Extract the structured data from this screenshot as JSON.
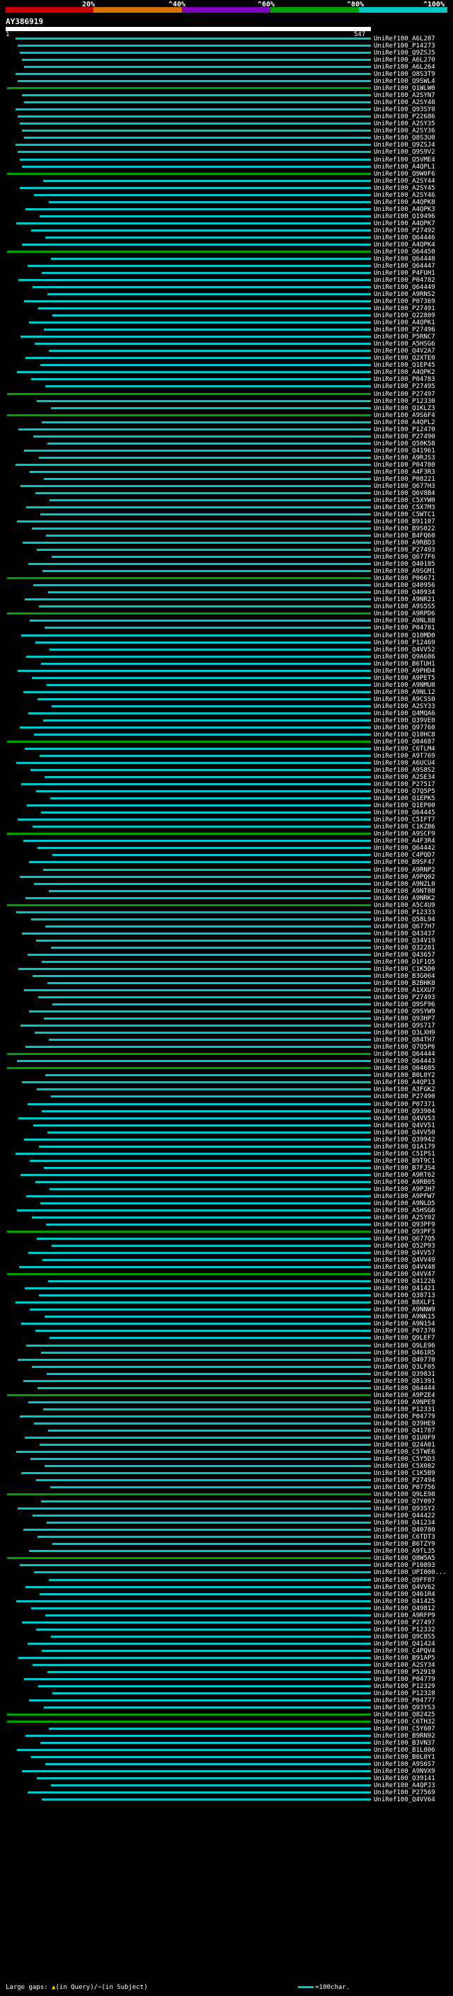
{
  "query": {
    "name": "AY386919",
    "start": "1",
    "end": "547"
  },
  "legend": {
    "labels": [
      "20%",
      "^40%",
      "^60%",
      "^80%",
      "^100%"
    ],
    "colors": [
      "#cc0000",
      "#d87000",
      "#8000c0",
      "#00a000",
      "#00c8c8"
    ]
  },
  "footer": {
    "large_gaps": "Large gaps:",
    "in_query": "(in Query)/",
    "in_subject": "(in Subject)",
    "scale": "=100char."
  },
  "hits": [
    "UniRef100_A6L287",
    "UniRef100_P14273",
    "UniRef100_Q9ZSJ5",
    "UniRef100_A6L270",
    "UniRef100_A6L264",
    "UniRef100_Q8S3T9",
    "UniRef100_Q9SWL4",
    "UniRef100_Q1WLW0",
    "UniRef100_A2SYN7",
    "UniRef100_A2SY48",
    "UniRef100_Q93SY8",
    "UniRef100_P22686",
    "UniRef100_A2SY35",
    "UniRef100_A2SY36",
    "UniRef100_Q8S3U0",
    "UniRef100_Q9ZSJ4",
    "UniRef100_Q9S9V2",
    "UniRef100_Q5VME4",
    "UniRef100_A4QPL1",
    "UniRef100_Q9W0F6",
    "UniRef100_A2SY44",
    "UniRef100_A2SY45",
    "UniRef100_A2SY46",
    "UniRef100_A4QPK8",
    "UniRef100_A4QPK3",
    "UniRef100_Q19496",
    "UniRef100_A4QPK7",
    "UniRef100_P27492",
    "UniRef100_Q64446",
    "UniRef100_A4QPK4",
    "UniRef100_Q64450",
    "UniRef100_Q64448",
    "UniRef100_Q64447",
    "UniRef100_P4FUH1",
    "UniRef100_P04782",
    "UniRef100_Q64449",
    "UniRef100_A9RNS2",
    "UniRef100_P07369",
    "UniRef100_P27491",
    "UniRef100_Q22809",
    "UniRef100_A4QPK1",
    "UniRef100_P27496",
    "UniRef100_P5RNC7",
    "UniRef100_A5HSG6",
    "UniRef100_Q4V2A7",
    "UniRef100_Q2XTE0",
    "UniRef100_Q1EP45",
    "UniRef100_A4QPK2",
    "UniRef100_P04783",
    "UniRef100_P27495",
    "UniRef100_P27497",
    "UniRef100_P12330",
    "UniRef100_Q1KLZ3",
    "UniRef100_A9S6F4",
    "UniRef100_A4QPL2",
    "UniRef100_P12470",
    "UniRef100_P27490",
    "UniRef100_Q50K58",
    "UniRef100_Q41961",
    "UniRef100_A9RJS3",
    "UniRef100_P04780",
    "UniRef100_A4F3R3",
    "UniRef100_P08221",
    "UniRef100_Q677H3",
    "UniRef100_Q6V8B4",
    "UniRef100_C5XYW0",
    "UniRef100_C5X7M3",
    "UniRef100_C5WTC1",
    "UniRef100_B91107",
    "UniRef100_B9S022",
    "UniRef100_B4FQ60",
    "UniRef100_A9RBD3",
    "UniRef100_P27493",
    "UniRef100_Q677F6",
    "UniRef100_Q40185",
    "UniRef100_A9SGM1",
    "UniRef100_P06671",
    "UniRef100_Q40956",
    "UniRef100_Q40934",
    "UniRef100_A9NR21",
    "UniRef100_A9S5S5",
    "UniRef100_A9RPD6",
    "UniRef100_A9NL88",
    "UniRef100_P04781",
    "UniRef100_Q10MD0",
    "UniRef100_P12469",
    "UniRef100_Q4VV52",
    "UniRef100_Q9A686",
    "UniRef100_B6TUH1",
    "UniRef100_A9PHD4",
    "UniRef100_A9PET5",
    "UniRef100_A9NMU8",
    "UniRef100_A9NL12",
    "UniRef100_A9CSS0",
    "UniRef100_A2SY33",
    "UniRef100_Q4MQA6",
    "UniRef100_Q39VE0",
    "UniRef100_Q97760",
    "UniRef100_Q10HC8",
    "UniRef100_Q04687",
    "UniRef100_C6TLM4",
    "UniRef100_A9T769",
    "UniRef100_A6UCU4",
    "UniRef100_A9S8S2",
    "UniRef100_A2SE34",
    "UniRef100_P27517",
    "UniRef100_Q7Q5P5",
    "UniRef100_Q1EPK5",
    "UniRef100_Q1EP00",
    "UniRef100_Q64445",
    "UniRef100_C5IFT7",
    "UniRef100_C1KZB6",
    "UniRef100_A9SCF9",
    "UniRef100_A4F3R4",
    "UniRef100_Q64442",
    "UniRef100_C4PQD7",
    "UniRef100_B9SF47",
    "UniRef100_A9RNP2",
    "UniRef100_A9PQ02",
    "UniRef100_A9NZL0",
    "UniRef100_A9NT88",
    "UniRef100_A9NRK2",
    "UniRef100_A5C4U9",
    "UniRef100_P12333",
    "UniRef100_Q58L94",
    "UniRef100_Q677H7",
    "UniRef100_Q43437",
    "UniRef100_Q34V19",
    "UniRef100_Q32281",
    "UniRef100_Q43657",
    "UniRef100_D1F1Q5",
    "UniRef100_C1K5D0",
    "UniRef100_B3G064",
    "UniRef100_B2BHK8",
    "UniRef100_A1XXU7",
    "UniRef100_P27493",
    "UniRef100_Q9SF96",
    "UniRef100_Q9SYW9",
    "UniRef100_Q93HP7",
    "UniRef100_Q9S717",
    "UniRef100_Q3LXH9",
    "UniRef100_Q84TH7",
    "UniRef100_Q7Q5P6",
    "UniRef100_Q64444",
    "UniRef100_Q64443",
    "UniRef100_Q04685",
    "UniRef100_B0L0Y2",
    "UniRef100_A4QP13",
    "UniRef100_A3FGK2",
    "UniRef100_P27490",
    "UniRef100_P07371",
    "UniRef100_Q93904",
    "UniRef100_Q4VV53",
    "UniRef100_Q4VV51",
    "UniRef100_Q4VV50",
    "UniRef100_Q39942",
    "UniRef100_Q1A179",
    "UniRef100_C5IPS1",
    "UniRef100_B9T9C1",
    "UniRef100_B7FJS4",
    "UniRef100_A9RT62",
    "UniRef100_A9RB05",
    "UniRef100_A9PJH7",
    "UniRef100_A9PFW7",
    "UniRef100_A9NLD5",
    "UniRef100_A5HSG6",
    "UniRef100_A2SY02",
    "UniRef100_Q93PF9",
    "UniRef100_Q93PF3",
    "UniRef100_Q677Q5",
    "UniRef100_Q52P93",
    "UniRef100_Q4VV57",
    "UniRef100_Q4VV49",
    "UniRef100_Q4VV48",
    "UniRef100_Q4VV47",
    "UniRef100_Q41226",
    "UniRef100_Q41421",
    "UniRef100_Q38713",
    "UniRef100_B8XLF1",
    "UniRef100_A9NNW9",
    "UniRef100_A9NK15",
    "UniRef100_A9N154",
    "UniRef100_P07370",
    "UniRef100_Q9LEF7",
    "UniRef100_Q9LE96",
    "UniRef100_Q461R5",
    "UniRef100_Q40770",
    "UniRef100_Q3LF05",
    "UniRef100_Q39831",
    "UniRef100_Q81391",
    "UniRef100_Q64444",
    "UniRef100_A9PZE4",
    "UniRef100_A9NPE9",
    "UniRef100_P12331",
    "UniRef100_P04779",
    "UniRef100_Q39HE9",
    "UniRef100_Q41787",
    "UniRef100_Q1U0F9",
    "UniRef100_Q24A01",
    "UniRef100_C5TWE6",
    "UniRef100_C5Y5D3",
    "UniRef100_C5X082",
    "UniRef100_C1K5B9",
    "UniRef100_P27494",
    "UniRef100_P07756",
    "UniRef100_Q9LE98",
    "UniRef100_Q7Y097",
    "UniRef100_Q93SY2",
    "UniRef100_Q44422",
    "UniRef100_Q41234",
    "UniRef100_Q40780",
    "UniRef100_C6TDT3",
    "UniRef100_B6TZY9",
    "UniRef100_A9TL35",
    "UniRef100_Q8W5A5",
    "UniRef100_P10893",
    "UniRef100_UPI000...",
    "UniRef100_Q9FF87",
    "UniRef100_Q4VV62",
    "UniRef100_Q461R4",
    "UniRef100_Q41425",
    "UniRef100_Q49812",
    "UniRef100_A9RFP9",
    "UniRef100_P27497",
    "UniRef100_P12332",
    "UniRef100_Q9C8S5",
    "UniRef100_Q41424",
    "UniRef100_C4PQV4",
    "UniRef100_B91AP5",
    "UniRef100_A2SY34",
    "UniRef100_P52919",
    "UniRef100_P04779",
    "UniRef100_P12329",
    "UniRef100_P12328",
    "UniRef100_P04777",
    "UniRef100_Q93YS3",
    "UniRef100_Q82425",
    "UniRef100_C6TH32",
    "UniRef100_C5Y607",
    "UniRef100_B9RN92",
    "UniRef100_B3VN37",
    "UniRef100_B1L806",
    "UniRef100_B0L0Y1",
    "UniRef100_A9S6S7",
    "UniRef100_A9NVX9",
    "UniRef100_Q39141",
    "UniRef100_A4QPJ3",
    "UniRef100_P27569",
    "UniRef100_Q4VV64"
  ]
}
